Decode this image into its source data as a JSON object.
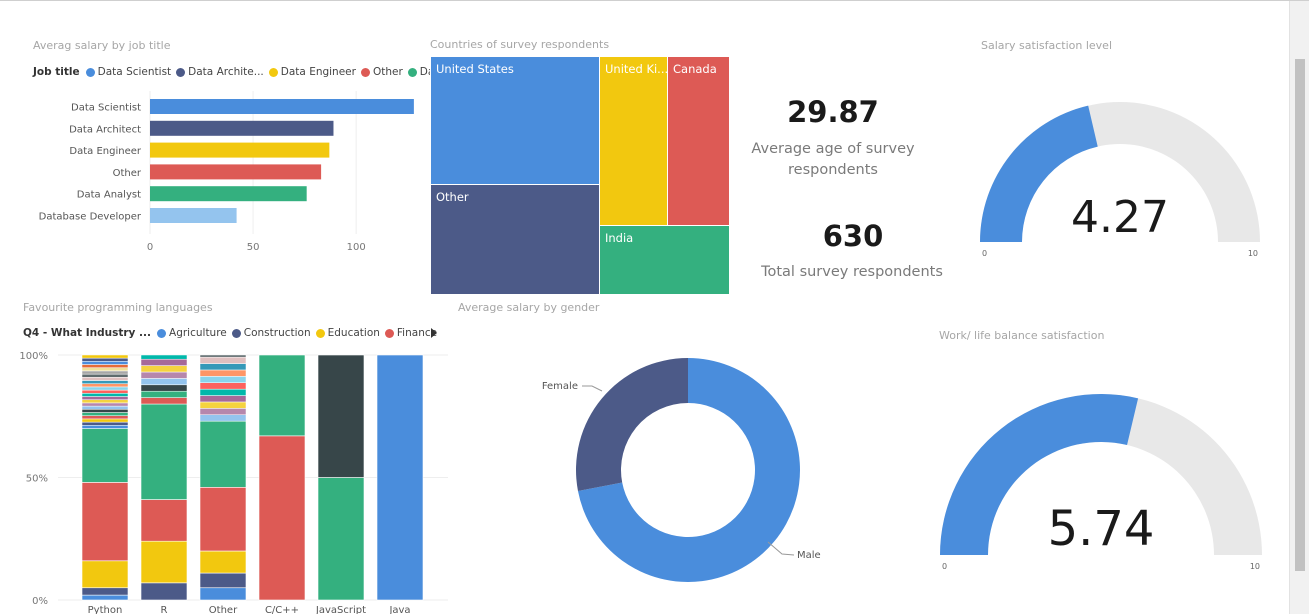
{
  "colors": {
    "blue": "#4a8ddc",
    "navy": "#4c5a88",
    "yellow": "#f2c80f",
    "red": "#dd5a55",
    "green": "#34b07f",
    "lightblue": "#94c4ee",
    "dark": "#374649",
    "gray": "#e8e8e8"
  },
  "salary_by_job": {
    "title": "Averag salary by job title",
    "legend_title": "Job title",
    "legend": [
      {
        "label": "Data Scientist",
        "color": "#4a8ddc"
      },
      {
        "label": "Data Archite...",
        "color": "#4c5a88"
      },
      {
        "label": "Data Engineer",
        "color": "#f2c80f"
      },
      {
        "label": "Other",
        "color": "#dd5a55"
      },
      {
        "label": "Data Analyst",
        "color": "#34b07f"
      }
    ]
  },
  "countries": {
    "title": "Countries of survey respondents",
    "cells": [
      {
        "label": "United States",
        "color": "#4a8ddc"
      },
      {
        "label": "Other",
        "color": "#4c5a88"
      },
      {
        "label": "United Ki...",
        "color": "#f2c80f"
      },
      {
        "label": "Canada",
        "color": "#dd5a55"
      },
      {
        "label": "India",
        "color": "#34b07f"
      }
    ]
  },
  "kpis": {
    "avg_age": {
      "value": "29.87",
      "label": "Average age of survey respondents"
    },
    "total": {
      "value": "630",
      "label": "Total survey respondents"
    }
  },
  "salary_satisfaction": {
    "title": "Salary satisfaction level",
    "value": "4.27",
    "min": "0",
    "max": "10",
    "fraction": 0.427
  },
  "worklife": {
    "title": "Work/ life balance satisfaction",
    "value": "5.74",
    "min": "0",
    "max": "10",
    "fraction": 0.574
  },
  "languages": {
    "title": "Favourite programming languages",
    "legend_title": "Q4 - What Industry ...",
    "legend": [
      {
        "label": "Agriculture",
        "color": "#4a8ddc"
      },
      {
        "label": "Construction",
        "color": "#4c5a88"
      },
      {
        "label": "Education",
        "color": "#f2c80f"
      },
      {
        "label": "Finance",
        "color": "#dd5a55"
      }
    ]
  },
  "gender": {
    "title": "Average salary by gender"
  },
  "chart_data": [
    {
      "type": "bar",
      "orientation": "horizontal",
      "title": "Averag salary by job title",
      "categories": [
        "Data Scientist",
        "Data Architect",
        "Data Engineer",
        "Other",
        "Data Analyst",
        "Database Developer"
      ],
      "values": [
        128,
        89,
        87,
        83,
        76,
        42
      ],
      "colors": [
        "#4a8ddc",
        "#4c5a88",
        "#f2c80f",
        "#dd5a55",
        "#34b07f",
        "#94c4ee"
      ],
      "xlim": [
        0,
        130
      ],
      "xticks": [
        "0",
        "50",
        "100"
      ],
      "grid": true
    },
    {
      "type": "table",
      "subtype": "treemap",
      "title": "Countries of survey respondents",
      "categories": [
        "United States",
        "Other",
        "United Ki...",
        "Canada",
        "India"
      ]
    },
    {
      "type": "bar",
      "subtype": "100%-stacked-column",
      "title": "Favourite programming languages",
      "categories": [
        "Python",
        "R",
        "Other",
        "C/C++",
        "JavaScript",
        "Java"
      ],
      "yticks": [
        "0%",
        "50%",
        "100%"
      ],
      "series": [
        {
          "name": "Agriculture",
          "color": "#4a8ddc",
          "values": [
            2,
            0,
            5,
            0,
            0,
            100
          ]
        },
        {
          "name": "Construction",
          "color": "#4c5a88",
          "values": [
            3,
            7,
            6,
            0,
            0,
            0
          ]
        },
        {
          "name": "Education",
          "color": "#f2c80f",
          "values": [
            11,
            17,
            9,
            0,
            0,
            0
          ]
        },
        {
          "name": "Finance",
          "color": "#dd5a55",
          "values": [
            32,
            17,
            26,
            67,
            0,
            0
          ]
        },
        {
          "name": "",
          "color": "#34b07f",
          "values": [
            22,
            39,
            27,
            33,
            50,
            0
          ]
        },
        {
          "name": "",
          "color": "#374649",
          "values": [
            0,
            0,
            0,
            0,
            50,
            0
          ]
        }
      ]
    },
    {
      "type": "pie",
      "subtype": "donut",
      "title": "Average salary by gender",
      "categories": [
        "Male",
        "Female"
      ],
      "values": [
        72,
        28
      ],
      "colors": [
        "#4a8ddc",
        "#4c5a88"
      ]
    }
  ]
}
